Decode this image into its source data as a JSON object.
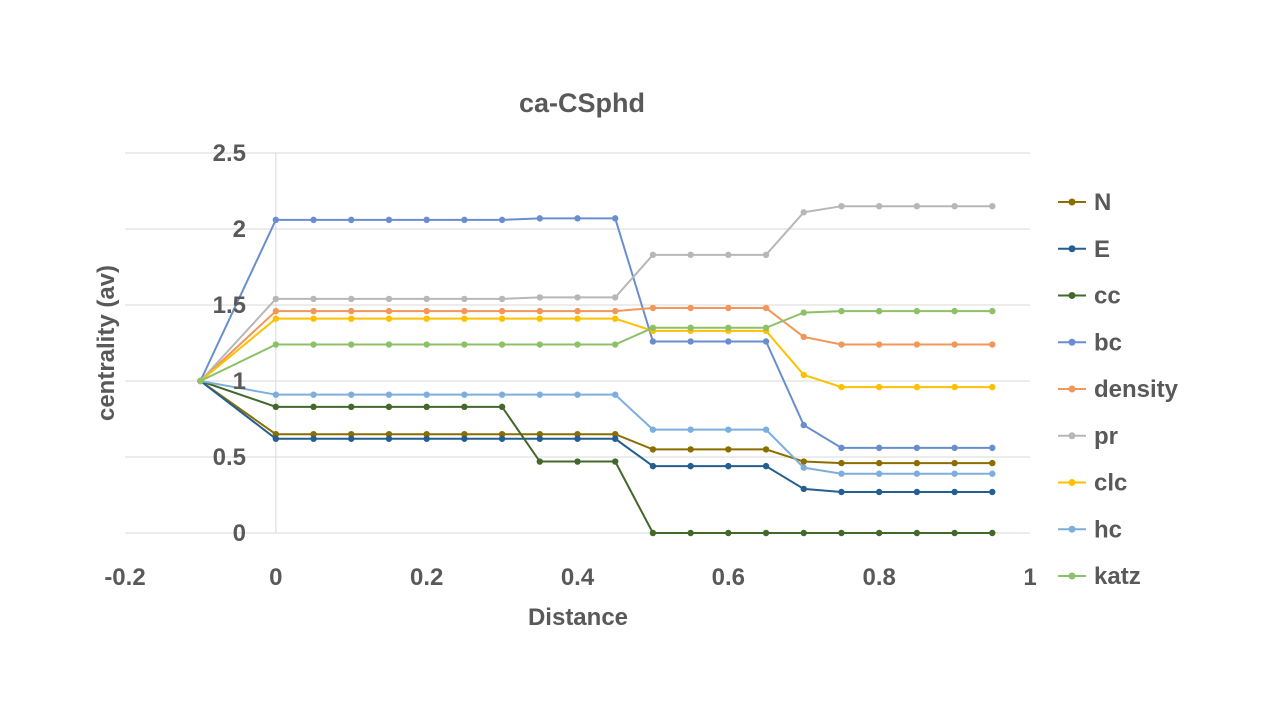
{
  "chart_data": {
    "type": "line",
    "title": "ca-CSphd",
    "xlabel": "Distance",
    "ylabel": "centrality (av)",
    "xlim": [
      -0.2,
      1
    ],
    "ylim": [
      0,
      2.5
    ],
    "x_ticks": [
      "-0.2",
      "0",
      "0.2",
      "0.4",
      "0.6",
      "0.8",
      "1"
    ],
    "y_ticks": [
      "0",
      "0.5",
      "1",
      "1.5",
      "2",
      "2.5"
    ],
    "grid": "horizontal",
    "legend_position": "right",
    "x": [
      -0.1,
      0,
      0.05,
      0.1,
      0.15,
      0.2,
      0.25,
      0.3,
      0.35,
      0.4,
      0.45,
      0.5,
      0.55,
      0.6,
      0.65,
      0.7,
      0.75,
      0.8,
      0.85,
      0.9,
      0.95
    ],
    "series": [
      {
        "name": "N",
        "color": "#8c6d00",
        "values": [
          1,
          0.65,
          0.65,
          0.65,
          0.65,
          0.65,
          0.65,
          0.65,
          0.65,
          0.65,
          0.65,
          0.55,
          0.55,
          0.55,
          0.55,
          0.47,
          0.46,
          0.46,
          0.46,
          0.46,
          0.46
        ]
      },
      {
        "name": "E",
        "color": "#255e91",
        "values": [
          1,
          0.62,
          0.62,
          0.62,
          0.62,
          0.62,
          0.62,
          0.62,
          0.62,
          0.62,
          0.62,
          0.44,
          0.44,
          0.44,
          0.44,
          0.29,
          0.27,
          0.27,
          0.27,
          0.27,
          0.27
        ]
      },
      {
        "name": "cc",
        "color": "#43682b",
        "values": [
          1,
          0.83,
          0.83,
          0.83,
          0.83,
          0.83,
          0.83,
          0.83,
          0.47,
          0.47,
          0.47,
          0,
          0,
          0,
          0,
          0,
          0,
          0,
          0,
          0,
          0
        ]
      },
      {
        "name": "bc",
        "color": "#698ed0",
        "values": [
          1,
          2.06,
          2.06,
          2.06,
          2.06,
          2.06,
          2.06,
          2.06,
          2.07,
          2.07,
          2.07,
          1.26,
          1.26,
          1.26,
          1.26,
          0.71,
          0.56,
          0.56,
          0.56,
          0.56,
          0.56
        ]
      },
      {
        "name": "density",
        "color": "#f1975a",
        "values": [
          1,
          1.46,
          1.46,
          1.46,
          1.46,
          1.46,
          1.46,
          1.46,
          1.46,
          1.46,
          1.46,
          1.48,
          1.48,
          1.48,
          1.48,
          1.29,
          1.24,
          1.24,
          1.24,
          1.24,
          1.24
        ]
      },
      {
        "name": "pr",
        "color": "#b7b7b7",
        "values": [
          1,
          1.54,
          1.54,
          1.54,
          1.54,
          1.54,
          1.54,
          1.54,
          1.55,
          1.55,
          1.55,
          1.83,
          1.83,
          1.83,
          1.83,
          2.11,
          2.15,
          2.15,
          2.15,
          2.15,
          2.15
        ]
      },
      {
        "name": "clc",
        "color": "#ffc000",
        "values": [
          1,
          1.41,
          1.41,
          1.41,
          1.41,
          1.41,
          1.41,
          1.41,
          1.41,
          1.41,
          1.41,
          1.33,
          1.33,
          1.33,
          1.33,
          1.04,
          0.96,
          0.96,
          0.96,
          0.96,
          0.96
        ]
      },
      {
        "name": "hc",
        "color": "#7cafdd",
        "values": [
          1,
          0.91,
          0.91,
          0.91,
          0.91,
          0.91,
          0.91,
          0.91,
          0.91,
          0.91,
          0.91,
          0.68,
          0.68,
          0.68,
          0.68,
          0.43,
          0.39,
          0.39,
          0.39,
          0.39,
          0.39
        ]
      },
      {
        "name": "katz",
        "color": "#8cc168",
        "values": [
          1,
          1.24,
          1.24,
          1.24,
          1.24,
          1.24,
          1.24,
          1.24,
          1.24,
          1.24,
          1.24,
          1.35,
          1.35,
          1.35,
          1.35,
          1.45,
          1.46,
          1.46,
          1.46,
          1.46,
          1.46
        ]
      }
    ]
  }
}
